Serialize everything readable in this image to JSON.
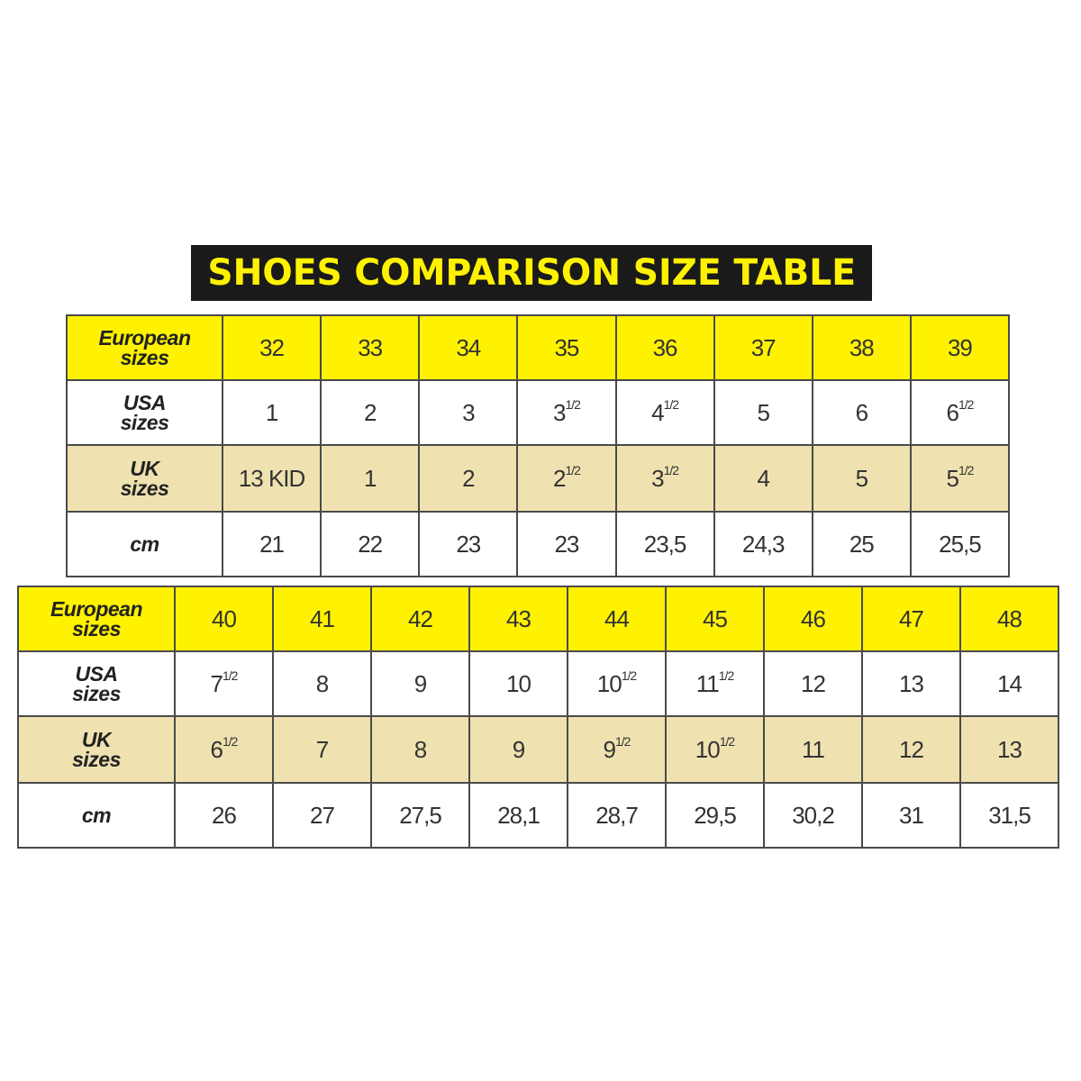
{
  "title": "SHOES COMPARISON SIZE TABLE",
  "colors": {
    "header_yellow": "#fff200",
    "uk_row_beige": "#efe2b0",
    "banner_black": "#1a1a1a"
  },
  "row_labels": {
    "european": [
      "European",
      "sizes"
    ],
    "usa": [
      "USA",
      "sizes"
    ],
    "uk": [
      "UK",
      "sizes"
    ],
    "cm": [
      "cm"
    ]
  },
  "tables": [
    {
      "european": [
        {
          "n": "32"
        },
        {
          "n": "33"
        },
        {
          "n": "34"
        },
        {
          "n": "35"
        },
        {
          "n": "36"
        },
        {
          "n": "37"
        },
        {
          "n": "38"
        },
        {
          "n": "39"
        }
      ],
      "usa": [
        {
          "n": "1"
        },
        {
          "n": "2"
        },
        {
          "n": "3"
        },
        {
          "n": "3",
          "f": "1/2"
        },
        {
          "n": "4",
          "f": "1/2"
        },
        {
          "n": "5"
        },
        {
          "n": "6"
        },
        {
          "n": "6",
          "f": "1/2"
        }
      ],
      "uk": [
        {
          "n": "13 KID"
        },
        {
          "n": "1"
        },
        {
          "n": "2"
        },
        {
          "n": "2",
          "f": "1/2"
        },
        {
          "n": "3",
          "f": "1/2"
        },
        {
          "n": "4"
        },
        {
          "n": "5"
        },
        {
          "n": "5",
          "f": "1/2"
        }
      ],
      "cm": [
        {
          "n": "21"
        },
        {
          "n": "22"
        },
        {
          "n": "23"
        },
        {
          "n": "23"
        },
        {
          "n": "23,5"
        },
        {
          "n": "24,3"
        },
        {
          "n": "25"
        },
        {
          "n": "25,5"
        }
      ]
    },
    {
      "european": [
        {
          "n": "40"
        },
        {
          "n": "41"
        },
        {
          "n": "42"
        },
        {
          "n": "43"
        },
        {
          "n": "44"
        },
        {
          "n": "45"
        },
        {
          "n": "46"
        },
        {
          "n": "47"
        },
        {
          "n": "48"
        }
      ],
      "usa": [
        {
          "n": "7",
          "f": "1/2"
        },
        {
          "n": "8"
        },
        {
          "n": "9"
        },
        {
          "n": "10"
        },
        {
          "n": "10",
          "f": "1/2"
        },
        {
          "n": "11",
          "f": "1/2"
        },
        {
          "n": "12"
        },
        {
          "n": "13"
        },
        {
          "n": "14"
        }
      ],
      "uk": [
        {
          "n": "6",
          "f": "1/2"
        },
        {
          "n": "7"
        },
        {
          "n": "8"
        },
        {
          "n": "9"
        },
        {
          "n": "9",
          "f": "1/2"
        },
        {
          "n": "10",
          "f": "1/2"
        },
        {
          "n": "11"
        },
        {
          "n": "12"
        },
        {
          "n": "13"
        }
      ],
      "cm": [
        {
          "n": "26"
        },
        {
          "n": "27"
        },
        {
          "n": "27,5"
        },
        {
          "n": "28,1"
        },
        {
          "n": "28,7"
        },
        {
          "n": "29,5"
        },
        {
          "n": "30,2"
        },
        {
          "n": "31"
        },
        {
          "n": "31,5"
        }
      ]
    }
  ]
}
